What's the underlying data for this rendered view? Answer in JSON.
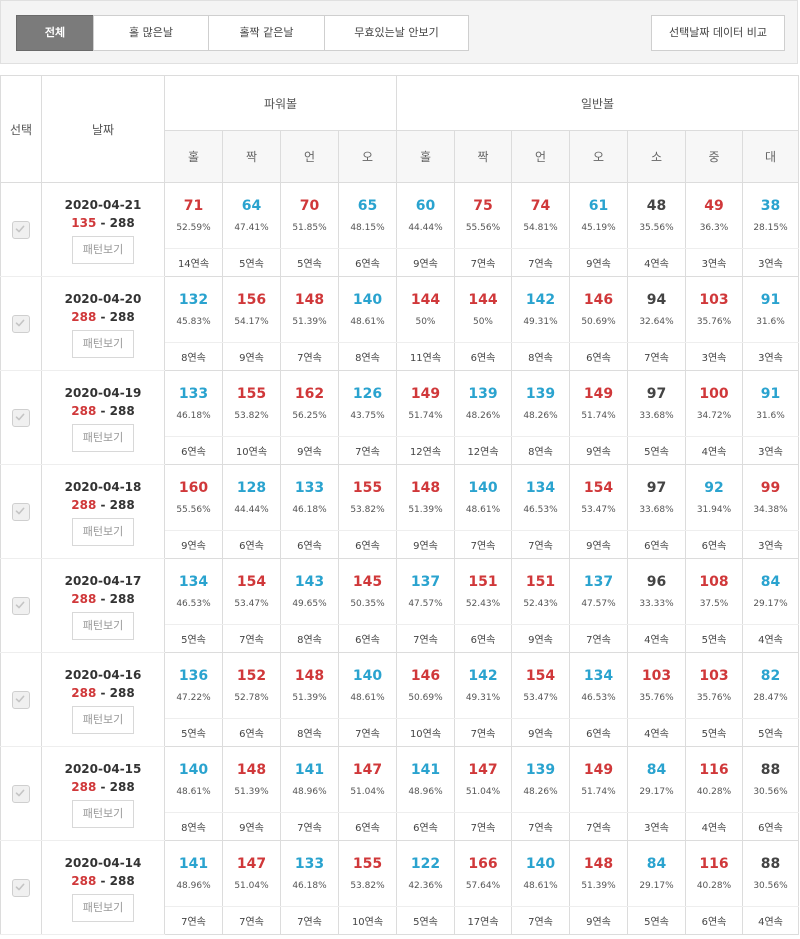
{
  "filters": [
    "전체",
    "홀 많은날",
    "홀짝 같은날",
    "무효있는날 안보기"
  ],
  "active_filter": 0,
  "compare_button": "선택날짜 데이터 비교",
  "headers": {
    "select": "선택",
    "date": "날짜",
    "powerball": "파워볼",
    "normal": "일반볼",
    "columns": [
      "홀",
      "짝",
      "언",
      "오",
      "홀",
      "짝",
      "언",
      "오",
      "소",
      "중",
      "대"
    ]
  },
  "pattern_label": "패턴보기",
  "colors": {
    "red": "#d0383a",
    "blue": "#2aa3cf",
    "dark": "#444444"
  },
  "rows": [
    {
      "date": "2020-04-21",
      "score_a": "135",
      "score_b": "288",
      "selected": true,
      "cells": [
        {
          "v": "71",
          "p": "52.59%",
          "s": "14연속",
          "c": "red"
        },
        {
          "v": "64",
          "p": "47.41%",
          "s": "5연속",
          "c": "blue"
        },
        {
          "v": "70",
          "p": "51.85%",
          "s": "5연속",
          "c": "red"
        },
        {
          "v": "65",
          "p": "48.15%",
          "s": "6연속",
          "c": "blue"
        },
        {
          "v": "60",
          "p": "44.44%",
          "s": "9연속",
          "c": "blue"
        },
        {
          "v": "75",
          "p": "55.56%",
          "s": "7연속",
          "c": "red"
        },
        {
          "v": "74",
          "p": "54.81%",
          "s": "7연속",
          "c": "red"
        },
        {
          "v": "61",
          "p": "45.19%",
          "s": "9연속",
          "c": "blue"
        },
        {
          "v": "48",
          "p": "35.56%",
          "s": "4연속",
          "c": "dark"
        },
        {
          "v": "49",
          "p": "36.3%",
          "s": "3연속",
          "c": "red"
        },
        {
          "v": "38",
          "p": "28.15%",
          "s": "3연속",
          "c": "blue"
        }
      ]
    },
    {
      "date": "2020-04-20",
      "score_a": "288",
      "score_b": "288",
      "selected": true,
      "cells": [
        {
          "v": "132",
          "p": "45.83%",
          "s": "8연속",
          "c": "blue"
        },
        {
          "v": "156",
          "p": "54.17%",
          "s": "9연속",
          "c": "red"
        },
        {
          "v": "148",
          "p": "51.39%",
          "s": "7연속",
          "c": "red"
        },
        {
          "v": "140",
          "p": "48.61%",
          "s": "8연속",
          "c": "blue"
        },
        {
          "v": "144",
          "p": "50%",
          "s": "11연속",
          "c": "red"
        },
        {
          "v": "144",
          "p": "50%",
          "s": "6연속",
          "c": "red"
        },
        {
          "v": "142",
          "p": "49.31%",
          "s": "8연속",
          "c": "blue"
        },
        {
          "v": "146",
          "p": "50.69%",
          "s": "6연속",
          "c": "red"
        },
        {
          "v": "94",
          "p": "32.64%",
          "s": "7연속",
          "c": "dark"
        },
        {
          "v": "103",
          "p": "35.76%",
          "s": "3연속",
          "c": "red"
        },
        {
          "v": "91",
          "p": "31.6%",
          "s": "3연속",
          "c": "blue"
        }
      ]
    },
    {
      "date": "2020-04-19",
      "score_a": "288",
      "score_b": "288",
      "selected": true,
      "cells": [
        {
          "v": "133",
          "p": "46.18%",
          "s": "6연속",
          "c": "blue"
        },
        {
          "v": "155",
          "p": "53.82%",
          "s": "10연속",
          "c": "red"
        },
        {
          "v": "162",
          "p": "56.25%",
          "s": "9연속",
          "c": "red"
        },
        {
          "v": "126",
          "p": "43.75%",
          "s": "7연속",
          "c": "blue"
        },
        {
          "v": "149",
          "p": "51.74%",
          "s": "12연속",
          "c": "red"
        },
        {
          "v": "139",
          "p": "48.26%",
          "s": "12연속",
          "c": "blue"
        },
        {
          "v": "139",
          "p": "48.26%",
          "s": "8연속",
          "c": "blue"
        },
        {
          "v": "149",
          "p": "51.74%",
          "s": "9연속",
          "c": "red"
        },
        {
          "v": "97",
          "p": "33.68%",
          "s": "5연속",
          "c": "dark"
        },
        {
          "v": "100",
          "p": "34.72%",
          "s": "4연속",
          "c": "red"
        },
        {
          "v": "91",
          "p": "31.6%",
          "s": "3연속",
          "c": "blue"
        }
      ]
    },
    {
      "date": "2020-04-18",
      "score_a": "288",
      "score_b": "288",
      "selected": true,
      "cells": [
        {
          "v": "160",
          "p": "55.56%",
          "s": "9연속",
          "c": "red"
        },
        {
          "v": "128",
          "p": "44.44%",
          "s": "6연속",
          "c": "blue"
        },
        {
          "v": "133",
          "p": "46.18%",
          "s": "6연속",
          "c": "blue"
        },
        {
          "v": "155",
          "p": "53.82%",
          "s": "6연속",
          "c": "red"
        },
        {
          "v": "148",
          "p": "51.39%",
          "s": "9연속",
          "c": "red"
        },
        {
          "v": "140",
          "p": "48.61%",
          "s": "7연속",
          "c": "blue"
        },
        {
          "v": "134",
          "p": "46.53%",
          "s": "7연속",
          "c": "blue"
        },
        {
          "v": "154",
          "p": "53.47%",
          "s": "9연속",
          "c": "red"
        },
        {
          "v": "97",
          "p": "33.68%",
          "s": "6연속",
          "c": "dark"
        },
        {
          "v": "92",
          "p": "31.94%",
          "s": "6연속",
          "c": "blue"
        },
        {
          "v": "99",
          "p": "34.38%",
          "s": "3연속",
          "c": "red"
        }
      ]
    },
    {
      "date": "2020-04-17",
      "score_a": "288",
      "score_b": "288",
      "selected": true,
      "cells": [
        {
          "v": "134",
          "p": "46.53%",
          "s": "5연속",
          "c": "blue"
        },
        {
          "v": "154",
          "p": "53.47%",
          "s": "7연속",
          "c": "red"
        },
        {
          "v": "143",
          "p": "49.65%",
          "s": "8연속",
          "c": "blue"
        },
        {
          "v": "145",
          "p": "50.35%",
          "s": "6연속",
          "c": "red"
        },
        {
          "v": "137",
          "p": "47.57%",
          "s": "7연속",
          "c": "blue"
        },
        {
          "v": "151",
          "p": "52.43%",
          "s": "6연속",
          "c": "red"
        },
        {
          "v": "151",
          "p": "52.43%",
          "s": "9연속",
          "c": "red"
        },
        {
          "v": "137",
          "p": "47.57%",
          "s": "7연속",
          "c": "blue"
        },
        {
          "v": "96",
          "p": "33.33%",
          "s": "4연속",
          "c": "dark"
        },
        {
          "v": "108",
          "p": "37.5%",
          "s": "5연속",
          "c": "red"
        },
        {
          "v": "84",
          "p": "29.17%",
          "s": "4연속",
          "c": "blue"
        }
      ]
    },
    {
      "date": "2020-04-16",
      "score_a": "288",
      "score_b": "288",
      "selected": true,
      "cells": [
        {
          "v": "136",
          "p": "47.22%",
          "s": "5연속",
          "c": "blue"
        },
        {
          "v": "152",
          "p": "52.78%",
          "s": "6연속",
          "c": "red"
        },
        {
          "v": "148",
          "p": "51.39%",
          "s": "8연속",
          "c": "red"
        },
        {
          "v": "140",
          "p": "48.61%",
          "s": "7연속",
          "c": "blue"
        },
        {
          "v": "146",
          "p": "50.69%",
          "s": "10연속",
          "c": "red"
        },
        {
          "v": "142",
          "p": "49.31%",
          "s": "7연속",
          "c": "blue"
        },
        {
          "v": "154",
          "p": "53.47%",
          "s": "9연속",
          "c": "red"
        },
        {
          "v": "134",
          "p": "46.53%",
          "s": "6연속",
          "c": "blue"
        },
        {
          "v": "103",
          "p": "35.76%",
          "s": "4연속",
          "c": "red"
        },
        {
          "v": "103",
          "p": "35.76%",
          "s": "5연속",
          "c": "red"
        },
        {
          "v": "82",
          "p": "28.47%",
          "s": "5연속",
          "c": "blue"
        }
      ]
    },
    {
      "date": "2020-04-15",
      "score_a": "288",
      "score_b": "288",
      "selected": true,
      "cells": [
        {
          "v": "140",
          "p": "48.61%",
          "s": "8연속",
          "c": "blue"
        },
        {
          "v": "148",
          "p": "51.39%",
          "s": "9연속",
          "c": "red"
        },
        {
          "v": "141",
          "p": "48.96%",
          "s": "7연속",
          "c": "blue"
        },
        {
          "v": "147",
          "p": "51.04%",
          "s": "6연속",
          "c": "red"
        },
        {
          "v": "141",
          "p": "48.96%",
          "s": "6연속",
          "c": "blue"
        },
        {
          "v": "147",
          "p": "51.04%",
          "s": "7연속",
          "c": "red"
        },
        {
          "v": "139",
          "p": "48.26%",
          "s": "7연속",
          "c": "blue"
        },
        {
          "v": "149",
          "p": "51.74%",
          "s": "7연속",
          "c": "red"
        },
        {
          "v": "84",
          "p": "29.17%",
          "s": "3연속",
          "c": "blue"
        },
        {
          "v": "116",
          "p": "40.28%",
          "s": "4연속",
          "c": "red"
        },
        {
          "v": "88",
          "p": "30.56%",
          "s": "6연속",
          "c": "dark"
        }
      ]
    },
    {
      "date": "2020-04-14",
      "score_a": "288",
      "score_b": "288",
      "selected": true,
      "cells": [
        {
          "v": "141",
          "p": "48.96%",
          "s": "7연속",
          "c": "blue"
        },
        {
          "v": "147",
          "p": "51.04%",
          "s": "7연속",
          "c": "red"
        },
        {
          "v": "133",
          "p": "46.18%",
          "s": "7연속",
          "c": "blue"
        },
        {
          "v": "155",
          "p": "53.82%",
          "s": "10연속",
          "c": "red"
        },
        {
          "v": "122",
          "p": "42.36%",
          "s": "5연속",
          "c": "blue"
        },
        {
          "v": "166",
          "p": "57.64%",
          "s": "17연속",
          "c": "red"
        },
        {
          "v": "140",
          "p": "48.61%",
          "s": "7연속",
          "c": "blue"
        },
        {
          "v": "148",
          "p": "51.39%",
          "s": "9연속",
          "c": "red"
        },
        {
          "v": "84",
          "p": "29.17%",
          "s": "5연속",
          "c": "blue"
        },
        {
          "v": "116",
          "p": "40.28%",
          "s": "6연속",
          "c": "red"
        },
        {
          "v": "88",
          "p": "30.56%",
          "s": "4연속",
          "c": "dark"
        }
      ]
    }
  ]
}
